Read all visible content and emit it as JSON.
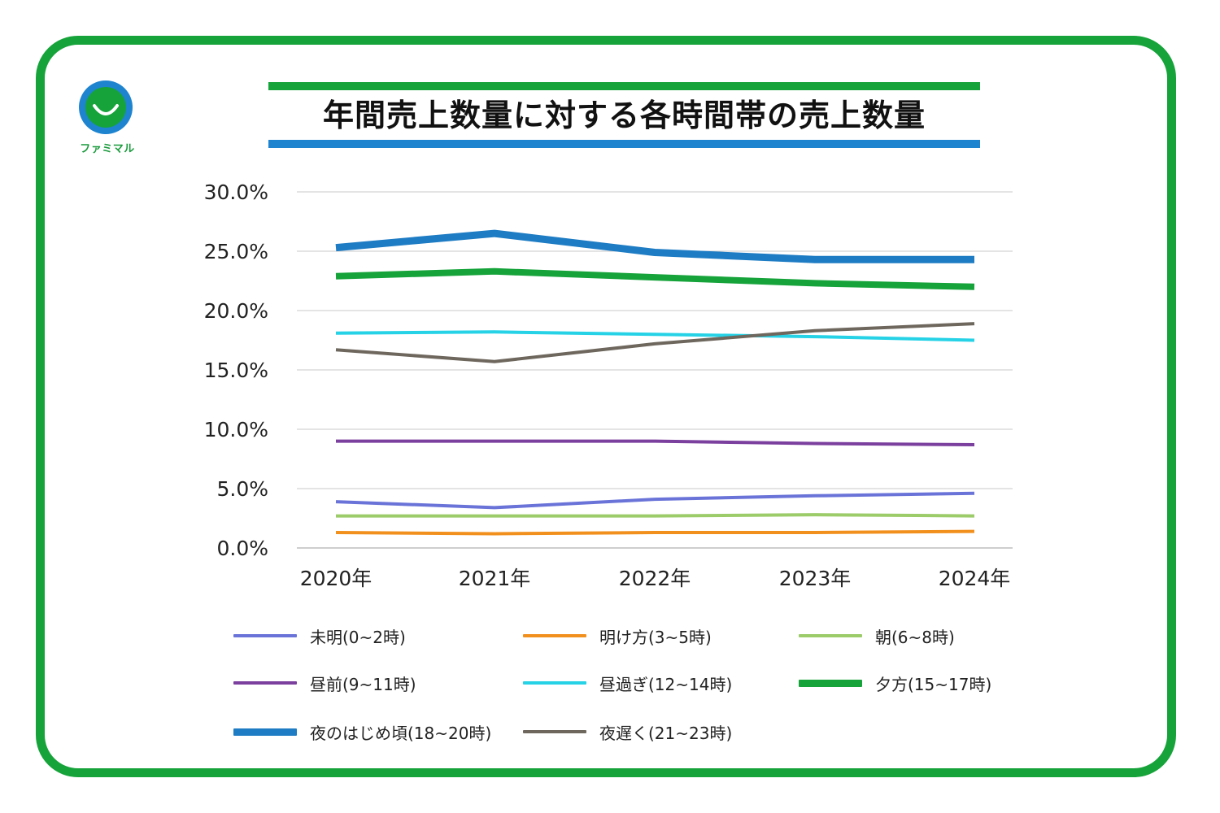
{
  "brand": {
    "logo_text": "ファミマル",
    "green": "#16a33a",
    "blue": "#1e84d0"
  },
  "title": "年間売上数量に対する各時間帯の売上数量",
  "chart_data": {
    "type": "line",
    "title": "年間売上数量に対する各時間帯の売上数量",
    "categories": [
      "2020年",
      "2021年",
      "2022年",
      "2023年",
      "2024年"
    ],
    "y_ticks": [
      "0.0%",
      "5.0%",
      "10.0%",
      "15.0%",
      "20.0%",
      "25.0%",
      "30.0%"
    ],
    "ylim": [
      0,
      30
    ],
    "grid": true,
    "legend_position": "bottom",
    "series": [
      {
        "name": "未明(0~2時)",
        "color": "#6a74d8",
        "values": [
          3.9,
          3.4,
          4.1,
          4.4,
          4.6
        ]
      },
      {
        "name": "明け方(3~5時)",
        "color": "#f2901e",
        "values": [
          1.3,
          1.2,
          1.3,
          1.3,
          1.4
        ]
      },
      {
        "name": "朝(6~8時)",
        "color": "#9ccb6a",
        "values": [
          2.7,
          2.7,
          2.7,
          2.8,
          2.7
        ]
      },
      {
        "name": "昼前(9~11時)",
        "color": "#7b3f9e",
        "values": [
          9.0,
          9.0,
          9.0,
          8.8,
          8.7
        ]
      },
      {
        "name": "昼過ぎ(12~14時)",
        "color": "#25d2e6",
        "values": [
          18.1,
          18.2,
          18.0,
          17.8,
          17.5
        ]
      },
      {
        "name": "夕方(15~17時)",
        "color": "#16a33a",
        "values": [
          22.9,
          23.3,
          22.8,
          22.3,
          22.0
        ]
      },
      {
        "name": "夜のはじめ頃(18~20時)",
        "color": "#1e7cc4",
        "values": [
          25.3,
          26.5,
          24.9,
          24.3,
          24.3
        ]
      },
      {
        "name": "夜遅く(21~23時)",
        "color": "#6e675e",
        "values": [
          16.7,
          15.7,
          17.2,
          18.3,
          18.9
        ]
      }
    ]
  }
}
